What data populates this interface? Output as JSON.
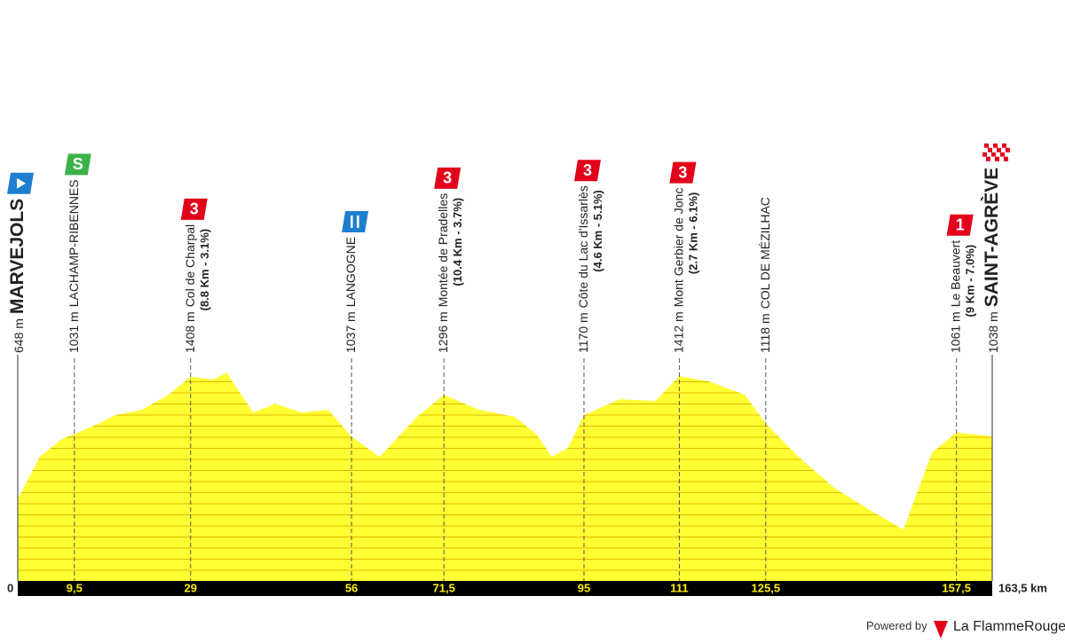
{
  "chart_data": {
    "type": "area",
    "color": "#ffff33",
    "x": [
      0,
      3.7,
      7.4,
      10.1,
      13.4,
      16.4,
      20.8,
      25.3,
      29,
      32.8,
      35,
      39.5,
      43.2,
      47.6,
      52.1,
      56,
      60.7,
      67,
      71.5,
      77.4,
      83.4,
      87.1,
      89.6,
      92.3,
      95,
      101,
      107,
      111,
      116,
      122,
      125.5,
      131,
      137,
      143,
      148.6,
      153.4,
      157.5,
      163.5
    ],
    "values": [
      648,
      911,
      1021,
      1060,
      1115,
      1170,
      1203,
      1296,
      1408,
      1390,
      1434,
      1186,
      1241,
      1186,
      1203,
      1037,
      911,
      1159,
      1296,
      1203,
      1159,
      1049,
      911,
      966,
      1170,
      1269,
      1258,
      1412,
      1379,
      1296,
      1118,
      911,
      718,
      580,
      459,
      938,
      1061,
      1038
    ],
    "xlim": [
      0,
      163.5
    ],
    "ylim": [
      140,
      1600
    ],
    "xticks": [
      0,
      {
        "value": 9.5,
        "label": "9,5"
      },
      29,
      56,
      {
        "value": 71.5,
        "label": "71,5"
      },
      95,
      111,
      {
        "value": 125.5,
        "label": "125,5"
      },
      {
        "value": 157.5,
        "label": "157,5"
      },
      {
        "value": 163.5,
        "label": "163,5 km"
      }
    ],
    "waypoints": [
      {
        "altitude": "648 m",
        "name": "MARVEJOLS",
        "icon": "start"
      },
      {
        "altitude": "1031 m",
        "name": "LACHAMP-RIBENNES",
        "icon": "sprint",
        "icon_text": "S"
      },
      {
        "altitude": "1408 m",
        "name": "Col de Charpal",
        "detail": "(8.8 Km - 3.1%)",
        "icon": "climb",
        "icon_text": "3"
      },
      {
        "altitude": "1037 m",
        "name": "LANGOGNE",
        "icon": "feed"
      },
      {
        "altitude": "1296 m",
        "name": "Montée de Pradelles",
        "detail": "(10.4 Km - 3.7%)",
        "icon": "climb",
        "icon_text": "3"
      },
      {
        "altitude": "1170 m",
        "name": "Côte du Lac d'Issarlès",
        "detail": "(4.6 Km - 5.1%)",
        "icon": "climb",
        "icon_text": "3"
      },
      {
        "altitude": "1412 m",
        "name": "Mont Gerbier de Jonc",
        "detail": "(2.7 Km - 6.1%)",
        "icon": "climb",
        "icon_text": "3"
      },
      {
        "altitude": "1118 m",
        "name": "COL DE MÉZILHAC"
      },
      {
        "altitude": "1061 m",
        "name": "Le Beauvert",
        "detail": "(9 Km - 7.0%)",
        "icon": "climb",
        "icon_text": "1"
      },
      {
        "altitude": "1038 m",
        "name": "SAINT-AGRÈVE",
        "icon": "finish"
      }
    ],
    "footer": {
      "powered": "Powered by",
      "brand": "La FlammeRouge"
    }
  }
}
